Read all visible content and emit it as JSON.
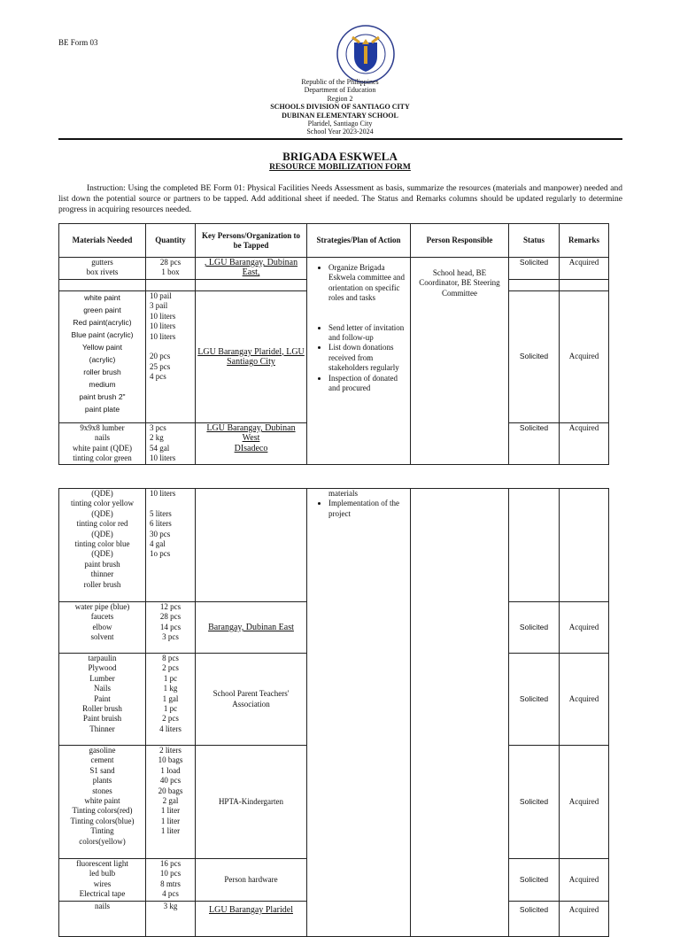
{
  "form_number": "BE Form 03",
  "logo": {
    "text_top": "KAGAWARAN NG EDUKASYON",
    "text_bottom": "REPUBLIKA NG PILIPINAS",
    "colors": {
      "ring": "#2a3a8c",
      "shield": "#1f3aa0",
      "torch": "#d9a02a"
    }
  },
  "header": {
    "line1": "Republic of the Philippines",
    "line2": "Department of Education",
    "line3": "Region 2",
    "line4": "SCHOOLS DIVISION OF SANTIAGO CITY",
    "line5": "DUBINAN ELEMENTARY SCHOOL",
    "line6": "Plaridel, Santiago City",
    "line7": "School Year 2023-2024"
  },
  "title": "BRIGADA ESKWELA",
  "subtitle": "RESOURCE MOBILIZATION FORM",
  "instruction": "Instruction: Using the completed BE Form 01: Physical Facilities Needs Assessment as basis, summarize the resources (materials and manpower) needed and list down the potential source or partners to be tapped. Add additional sheet if needed. The Status and Remarks columns should be updated regularly to determine progress in acquiring resources needed.",
  "table": {
    "columns": [
      "Materials  Needed",
      "Quantity",
      "Key Persons/Organization to be Tapped",
      "Strategies/Plan of Action",
      "Person Responsible",
      "Status",
      "Remarks"
    ],
    "strategies": [
      "Organize Brigada Eskwela committee and orientation on specific roles and tasks",
      "Send letter of invitation and follow-up",
      "List down donations received from stakeholders regularly",
      "Inspection of donated and procured",
      "materials",
      "Implementation of the project"
    ],
    "person_responsible": "School head, BE Coordinator, BE Steering Committee",
    "rows": [
      {
        "materials": [
          "gutters",
          "box rivets"
        ],
        "quantity": [
          "28 pcs",
          "1 box"
        ],
        "partner": ", LGU Barangay, Dubinan East,",
        "status": "Solicited",
        "remarks": "Acquired"
      },
      {
        "materials": [
          "white paint",
          "green paint",
          "Red paint(acrylic)",
          "Blue paint (acrylic)",
          "Yellow paint",
          "(acrylic)",
          "roller brush",
          "medium",
          "paint brush 2\"",
          "paint plate"
        ],
        "quantity": [
          "10 pail",
          "3 pail",
          "10 liters",
          "10 liters",
          "10 liters",
          "",
          "20 pcs",
          "25 pcs",
          "4 pcs"
        ],
        "partner": "LGU Barangay Plaridel, LGU Santiago City",
        "status": "Solicited",
        "remarks": "Acquired"
      },
      {
        "materials": [
          "9x9x8 lumber",
          "nails",
          "white paint (QDE)",
          "tinting color green"
        ],
        "quantity": [
          "3 pcs",
          "2 kg",
          "54 gal",
          "10 liters"
        ],
        "partner": "LGU Barangay, Dubinan West",
        "partner2": "DIsadeco",
        "status": "Solicited",
        "remarks": "Acquired"
      },
      {
        "materials": [
          "(QDE)",
          "tinting color yellow",
          "(QDE)",
          "tinting color red",
          "(QDE)",
          "tinting color blue",
          "(QDE)",
          "paint brush",
          "thinner",
          "roller brush"
        ],
        "quantity": [
          "10 liters",
          "",
          "5 liters",
          "6 liters",
          "30 pcs",
          "4 gal",
          "1o pcs"
        ]
      },
      {
        "materials": [
          "water pipe (blue)",
          "faucets",
          "elbow",
          "solvent"
        ],
        "quantity": [
          "12 pcs",
          "28 pcs",
          "14 pcs",
          "3 pcs"
        ],
        "partner": "Barangay, Dubinan East",
        "status": "Solicited",
        "remarks": "Acquired"
      },
      {
        "materials": [
          "tarpaulin",
          "Plywood",
          "Lumber",
          "Nails",
          "Paint",
          "Roller brush",
          "Paint bruish",
          "Thinner"
        ],
        "quantity": [
          "8 pcs",
          "2 pcs",
          "1 pc",
          "1 kg",
          "1 gal",
          "1 pc",
          "2 pcs",
          "4 liters"
        ],
        "partner": "School Parent Teachers' Association",
        "status": "Solicited",
        "remarks": "Acquired"
      },
      {
        "materials": [
          "gasoline",
          "cement",
          "S1 sand",
          "plants",
          "stones",
          "white paint",
          "Tinting colors(red)",
          "Tinting colors(blue)",
          "Tinting",
          "colors(yellow)"
        ],
        "quantity": [
          "2 liters",
          "10 bags",
          "1 load",
          "40 pcs",
          "20 bags",
          "2 gal",
          "1 liter",
          "1 liter",
          "1 liter"
        ],
        "partner": "HPTA-Kindergarten",
        "status": "Solicited",
        "remarks": "Acquired"
      },
      {
        "materials": [
          "fluorescent light",
          "led bulb",
          "wires",
          "Electrical tape"
        ],
        "quantity": [
          "16 pcs",
          "10 pcs",
          "8 mtrs",
          "4 pcs"
        ],
        "partner": "Person hardware",
        "status": "Solicited",
        "remarks": "Acquired"
      },
      {
        "materials": [
          "nails"
        ],
        "quantity": [
          "3 kg"
        ],
        "partner": "LGU Barangay Plaridel",
        "status": "Solicited",
        "remarks": "Acquired"
      }
    ]
  }
}
